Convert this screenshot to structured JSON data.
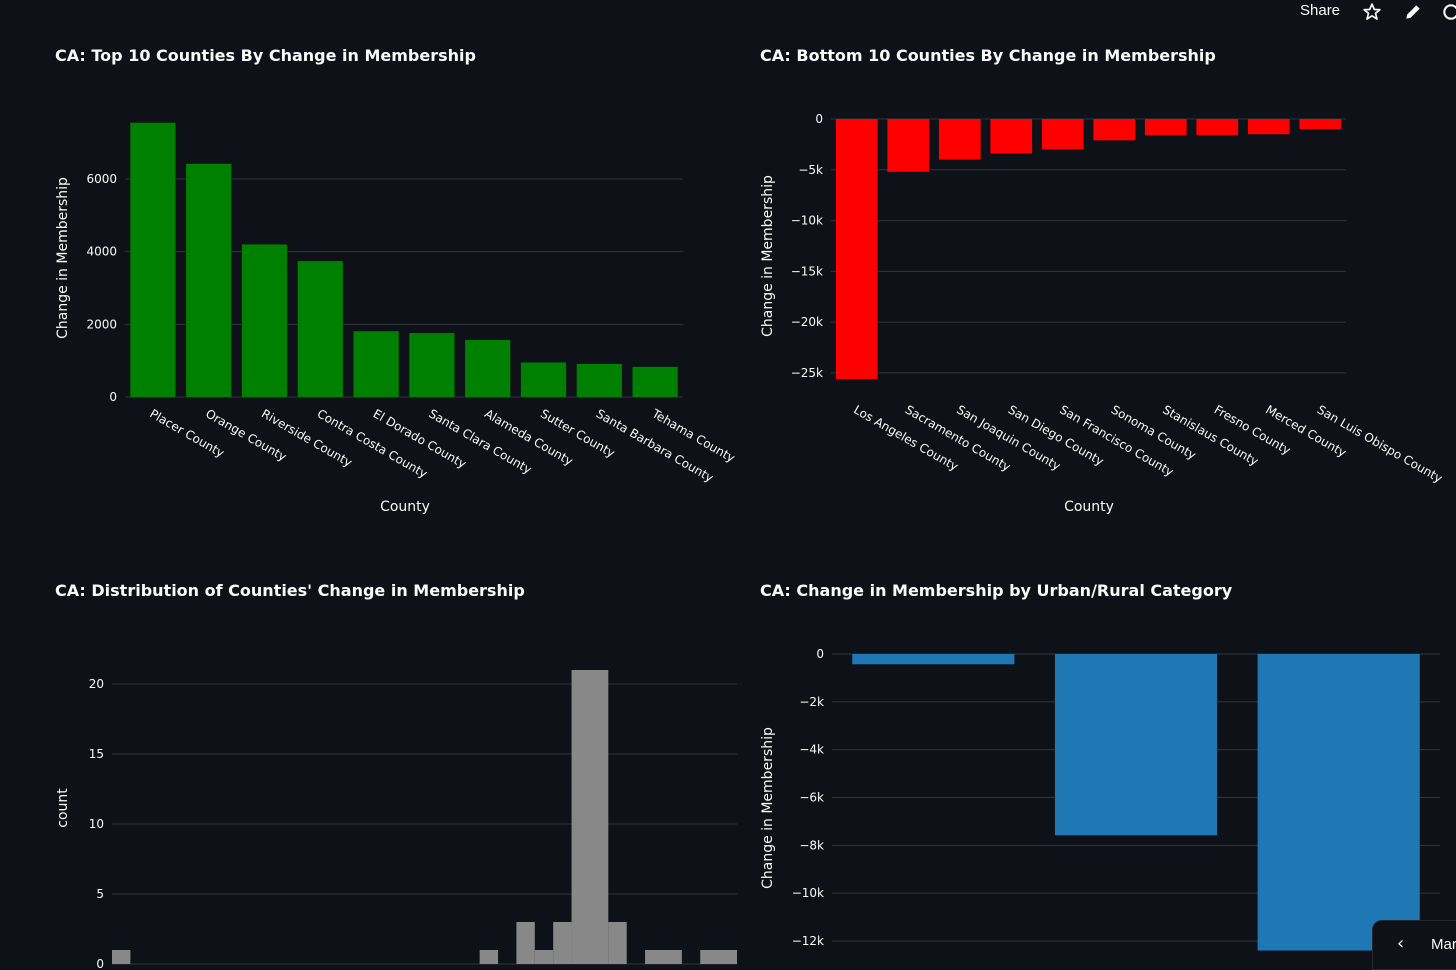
{
  "toolbar": {
    "share_label": "Share",
    "icons": [
      "star-icon",
      "pencil-icon",
      "github-icon"
    ]
  },
  "bottom_tab": {
    "label": "Mar",
    "icon": "chevron-left-icon"
  },
  "colors": {
    "background": "#0e1117",
    "gridline": "#30343c",
    "top10_bar": "#008000",
    "bottom10_bar": "#ff0000",
    "histogram_bar": "#888888",
    "urban_bar": "#1f77b4"
  },
  "chart_data": [
    {
      "id": "top10",
      "type": "bar",
      "title": "CA: Top 10 Counties By Change in Membership",
      "xlabel": "County",
      "ylabel": "Change in Membership",
      "categories": [
        "Placer County",
        "Orange County",
        "Riverside County",
        "Contra Costa County",
        "El Dorado County",
        "Santa Clara County",
        "Alameda County",
        "Sutter County",
        "Santa Barbara County",
        "Tehama County"
      ],
      "values": [
        7550,
        6420,
        4200,
        3740,
        1810,
        1760,
        1570,
        950,
        910,
        830
      ],
      "ylim": [
        0,
        8000
      ],
      "yticks": [
        0,
        2000,
        4000,
        6000
      ],
      "ytick_labels": [
        "0",
        "2000",
        "4000",
        "6000"
      ],
      "grid": true
    },
    {
      "id": "bottom10",
      "type": "bar",
      "title": "CA: Bottom 10 Counties By Change in Membership",
      "xlabel": "County",
      "ylabel": "Change in Membership",
      "categories": [
        "Los Angeles County",
        "Sacramento County",
        "San Joaquin County",
        "San Diego County",
        "San Francisco County",
        "Sonoma County",
        "Stanislaus County",
        "Fresno County",
        "Merced County",
        "San Luis Obispo County"
      ],
      "values": [
        -25600,
        -5200,
        -4000,
        -3400,
        -3000,
        -2100,
        -1600,
        -1600,
        -1500,
        -1000
      ],
      "ylim": [
        -26500,
        0
      ],
      "yticks": [
        0,
        -5000,
        -10000,
        -15000,
        -20000,
        -25000
      ],
      "ytick_labels": [
        "0",
        "−5k",
        "−10k",
        "−15k",
        "−20k",
        "−25k"
      ],
      "grid": true
    },
    {
      "id": "distribution",
      "type": "bar",
      "title": "CA: Distribution of Counties' Change in Membership",
      "xlabel": "",
      "ylabel": "count",
      "bins": [
        {
          "start": 0,
          "count": 1
        },
        {
          "start": 20,
          "count": 1
        },
        {
          "start": 22,
          "count": 3
        },
        {
          "start": 23,
          "count": 1
        },
        {
          "start": 24,
          "count": 3
        },
        {
          "start": 25,
          "count": 21
        },
        {
          "start": 27,
          "count": 3
        },
        {
          "start": 29,
          "count": 1
        },
        {
          "start": 32,
          "count": 1
        }
      ],
      "bin_widths": [
        1,
        1,
        1,
        1,
        1,
        2,
        1,
        2,
        2
      ],
      "x_range": [
        0,
        34
      ],
      "ylim": [
        0,
        23
      ],
      "yticks": [
        0,
        5,
        10,
        15,
        20
      ],
      "ytick_labels": [
        "0",
        "5",
        "10",
        "15",
        "20"
      ],
      "grid": true
    },
    {
      "id": "urban_rural",
      "type": "bar",
      "title": "CA: Change in Membership by Urban/Rural Category",
      "xlabel": "",
      "ylabel": "Change in Membership",
      "categories": [
        "",
        "",
        ""
      ],
      "values": [
        -430,
        -7580,
        -12400
      ],
      "ylim": [
        -12500,
        0
      ],
      "yticks": [
        0,
        -2000,
        -4000,
        -6000,
        -8000,
        -10000,
        -12000
      ],
      "ytick_labels": [
        "0",
        "−2k",
        "−4k",
        "−6k",
        "−8k",
        "−10k",
        "−12k"
      ],
      "grid": true
    }
  ]
}
